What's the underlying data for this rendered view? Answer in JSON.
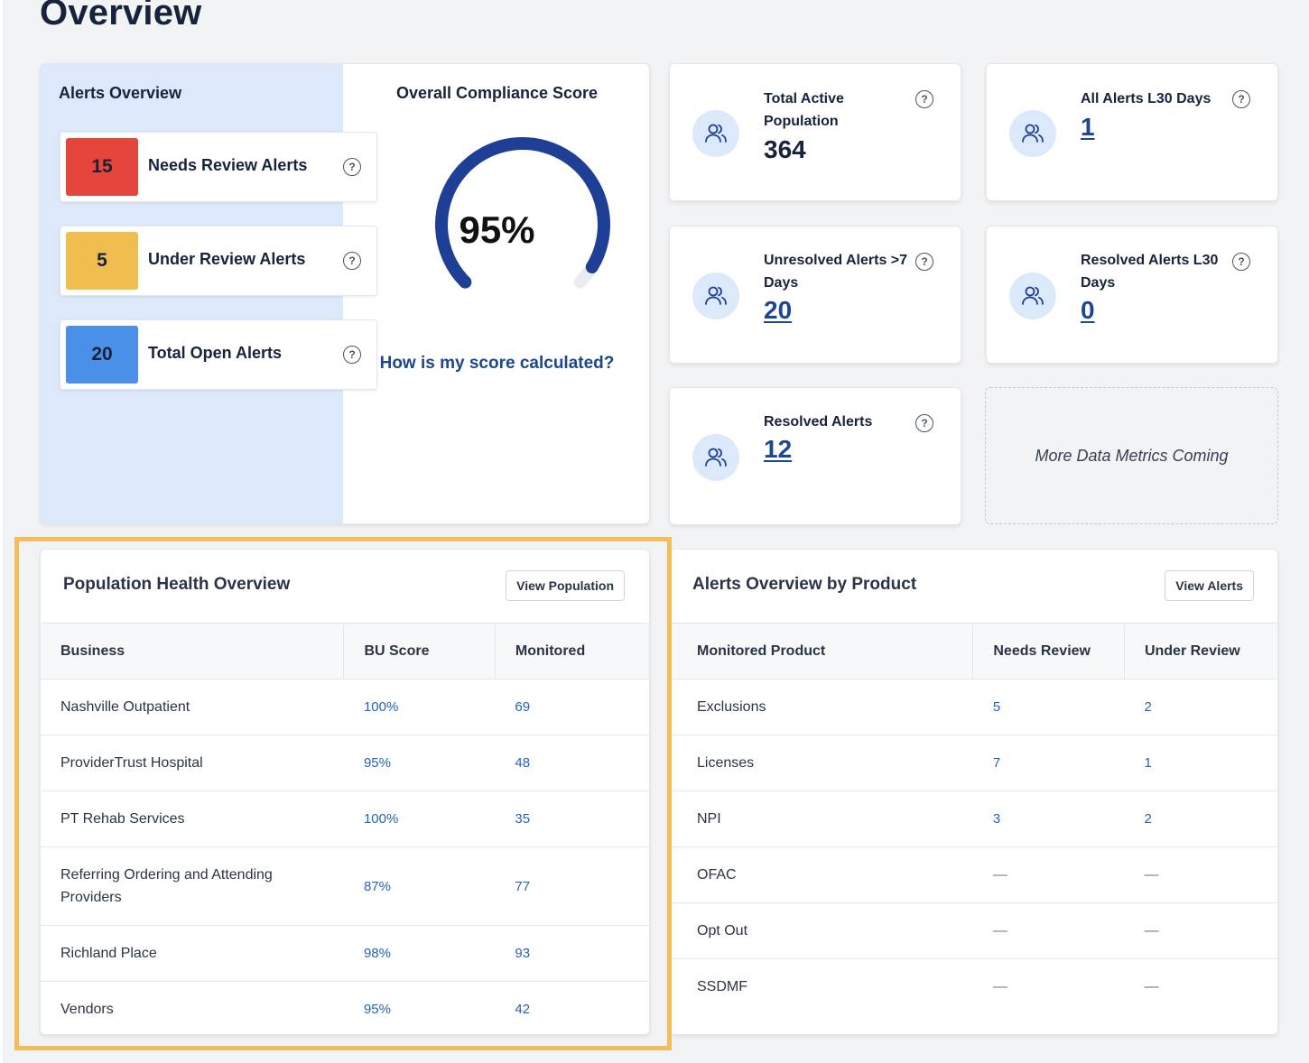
{
  "page": {
    "title": "Overview"
  },
  "alerts_overview": {
    "title": "Alerts Overview",
    "items": [
      {
        "count": "15",
        "label": "Needs Review Alerts",
        "color": "#e5453b"
      },
      {
        "count": "5",
        "label": "Under Review Alerts",
        "color": "#f0bd4f"
      },
      {
        "count": "20",
        "label": "Total Open Alerts",
        "color": "#4a90e8"
      }
    ]
  },
  "compliance": {
    "title": "Overall Compliance Score",
    "score": "95%",
    "score_fraction": 0.95,
    "link": "How is my score calculated?",
    "arc_color": "#1f3f96"
  },
  "metrics": [
    {
      "label": "Total Active Population",
      "value": "364"
    },
    {
      "label": "All Alerts L30 Days",
      "value": "1"
    },
    {
      "label": "Unresolved Alerts >7 Days",
      "value": "20"
    },
    {
      "label": "Resolved Alerts L30 Days",
      "value": "0"
    },
    {
      "label": "Resolved Alerts",
      "value": "12"
    }
  ],
  "more_metrics": "More Data Metrics Coming",
  "population_health": {
    "title": "Population Health Overview",
    "button": "View Population",
    "columns": [
      "Business",
      "BU Score",
      "Monitored"
    ],
    "rows": [
      [
        "Nashville Outpatient",
        "100%",
        "69"
      ],
      [
        "ProviderTrust Hospital",
        "95%",
        "48"
      ],
      [
        "PT Rehab Services",
        "100%",
        "35"
      ],
      [
        "Referring Ordering and Attending Providers",
        "87%",
        "77"
      ],
      [
        "Richland Place",
        "98%",
        "93"
      ],
      [
        "Vendors",
        "95%",
        "42"
      ]
    ]
  },
  "alerts_by_product": {
    "title": "Alerts Overview by Product",
    "button": "View Alerts",
    "columns": [
      "Monitored Product",
      "Needs Review",
      "Under Review"
    ],
    "rows": [
      [
        "Exclusions",
        "5",
        "2"
      ],
      [
        "Licenses",
        "7",
        "1"
      ],
      [
        "NPI",
        "3",
        "2"
      ],
      [
        "OFAC",
        "—",
        "—"
      ],
      [
        "Opt Out",
        "—",
        "—"
      ],
      [
        "SSDMF",
        "—",
        "—"
      ]
    ]
  }
}
